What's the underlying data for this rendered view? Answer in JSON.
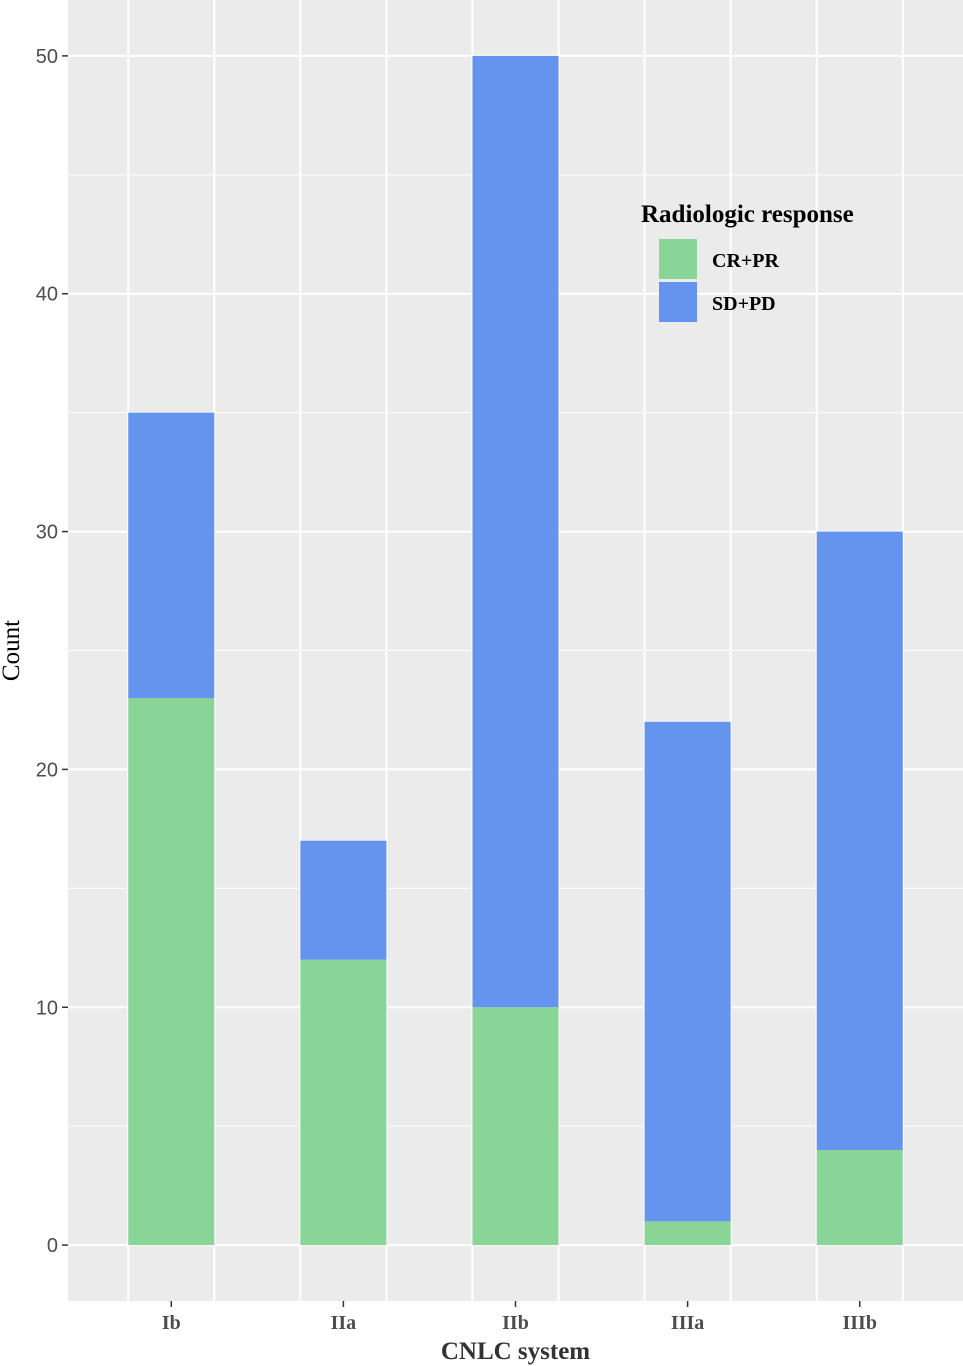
{
  "chart_data": {
    "type": "bar",
    "stacked": true,
    "categories": [
      "Ib",
      "IIa",
      "IIb",
      "IIIa",
      "IIIb"
    ],
    "series": [
      {
        "name": "CR+PR",
        "color": "#89D497",
        "values": [
          23,
          12,
          10,
          1,
          4
        ]
      },
      {
        "name": "SD+PD",
        "color": "#6594EE",
        "values": [
          12,
          5,
          40,
          21,
          26
        ]
      }
    ],
    "xlabel": "CNLC system",
    "ylabel": "Count",
    "ylim": [
      -2.35,
      52.35
    ],
    "yticks": [
      0,
      10,
      20,
      30,
      40,
      50
    ],
    "grid": true,
    "panel_background": "#EBEBEB",
    "legend": {
      "title": "Radiologic response",
      "position": "top-right"
    }
  }
}
